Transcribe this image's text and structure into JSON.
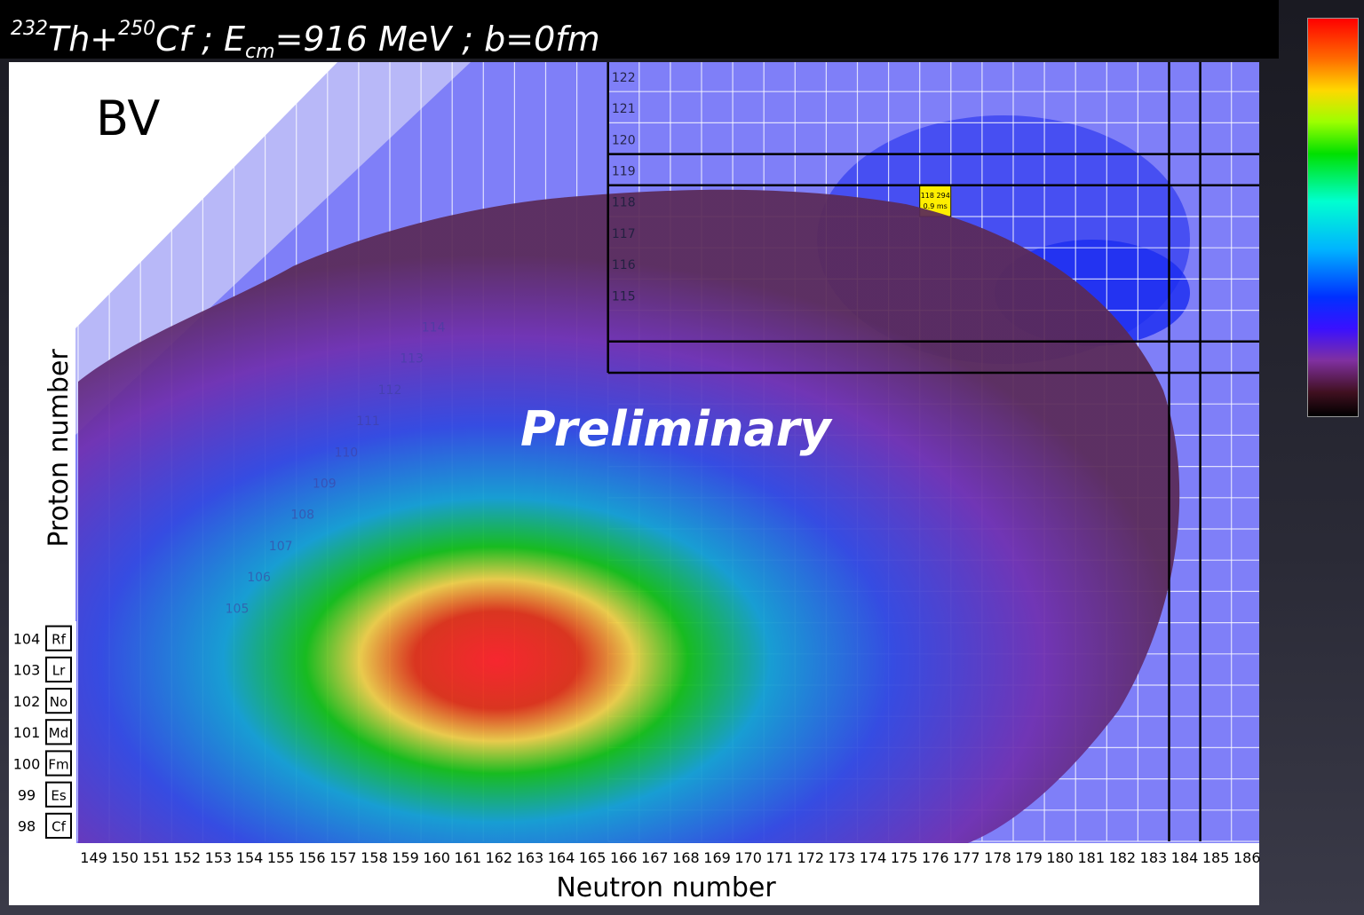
{
  "title": {
    "proj_a": "232",
    "proj_el": "Th+",
    "proj_b": "250",
    "targ_el": "Cf ;  E",
    "sub": "cm",
    "rest": "=916 MeV ;  b=0fm"
  },
  "colors": {
    "plot_background": "#7f7ff8",
    "grid": "#ffffff",
    "shell_lines": "#000000",
    "highlight_cell": "#ffee00"
  },
  "chart_data": {
    "type": "heatmap",
    "title": "",
    "panel_label": "BV",
    "watermark": "Preliminary",
    "xlabel": "Neutron number",
    "ylabel": "Proton number",
    "x_ticks": [
      "149",
      "150",
      "151",
      "152",
      "153",
      "154",
      "155",
      "156",
      "157",
      "158",
      "159",
      "160",
      "161",
      "162",
      "163",
      "164",
      "165",
      "166",
      "167",
      "168",
      "169",
      "170",
      "171",
      "172",
      "173",
      "174",
      "175",
      "176",
      "177",
      "178",
      "179",
      "180",
      "181",
      "182",
      "183",
      "184",
      "185",
      "186"
    ],
    "element_labels": [
      {
        "z": "104",
        "symbol": "Rf"
      },
      {
        "z": "103",
        "symbol": "Lr"
      },
      {
        "z": "102",
        "symbol": "No"
      },
      {
        "z": "101",
        "symbol": "Md"
      },
      {
        "z": "100",
        "symbol": "Fm"
      },
      {
        "z": "99",
        "symbol": "Es"
      },
      {
        "z": "98",
        "symbol": "Cf"
      }
    ],
    "upper_z_labels": [
      "122",
      "121",
      "120",
      "119",
      "118",
      "117",
      "116",
      "115",
      "114",
      "113",
      "112",
      "111",
      "110",
      "109",
      "108",
      "107",
      "106",
      "105"
    ],
    "xlim": [
      149,
      186
    ],
    "ylim": [
      98,
      122
    ],
    "colorscale": "jet-like (black → purple → blue → cyan → green → yellow → red)",
    "distribution_peak": {
      "n": 161,
      "z": 102
    },
    "highlight_nuclide": {
      "label": "118 294",
      "half_life": "0.9 ms",
      "n": 176,
      "z": 118
    },
    "shell_lines_z": [
      119.5,
      118.5,
      113.5,
      112.5
    ],
    "shell_lines_n": [
      183.5,
      184.5
    ]
  }
}
